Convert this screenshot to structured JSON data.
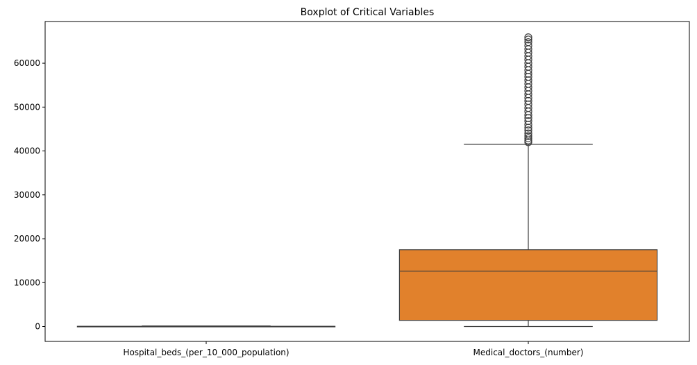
{
  "chart_data": {
    "type": "boxplot",
    "title": "Boxplot of Critical Variables",
    "xlabel": "",
    "ylabel": "",
    "ylim": [
      -3400,
      69500
    ],
    "yticks": [
      0,
      10000,
      20000,
      30000,
      40000,
      50000,
      60000
    ],
    "categories": [
      "Hospital_beds_(per_10_000_population)",
      "Medical_doctors_(number)"
    ],
    "boxes": [
      {
        "name": "Hospital_beds_(per_10_000_population)",
        "color": "#3274a1",
        "whisker_low": 0,
        "q1": 0,
        "median": 20,
        "q3": 40,
        "whisker_high": 120,
        "outliers": []
      },
      {
        "name": "Medical_doctors_(number)",
        "color": "#e1812c",
        "whisker_low": 0,
        "q1": 1400,
        "median": 12600,
        "q3": 17500,
        "whisker_high": 41500,
        "outliers": [
          42000,
          42400,
          42900,
          43400,
          44000,
          44700,
          45300,
          46000,
          46800,
          47500,
          48200,
          49000,
          49800,
          50600,
          51400,
          52100,
          52900,
          53700,
          54500,
          55300,
          56100,
          56900,
          57600,
          58400,
          59200,
          60000,
          60800,
          61600,
          62400,
          63200,
          64000,
          64800,
          65400,
          65900
        ]
      }
    ],
    "grid": false,
    "legend": "none"
  }
}
